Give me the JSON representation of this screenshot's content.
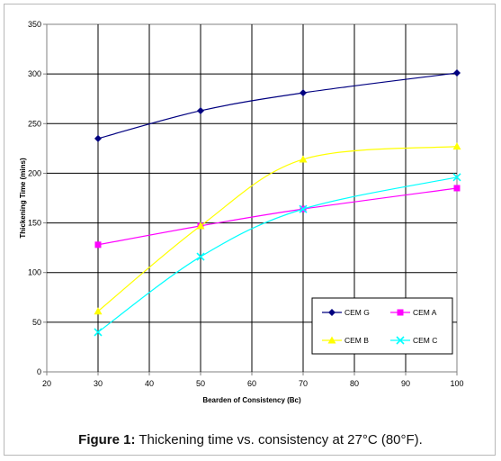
{
  "caption": {
    "label": "Figure 1:",
    "text": " Thickening time vs. consistency at 27°C (80°F)."
  },
  "chart_data": {
    "type": "line",
    "title": "",
    "xlabel": "Bearden of Consistency (Bc)",
    "ylabel": "Thickening Time (mins)",
    "xlim": [
      20,
      100
    ],
    "ylim": [
      0,
      350
    ],
    "xticks": [
      20,
      30,
      40,
      50,
      60,
      70,
      80,
      90,
      100
    ],
    "yticks": [
      0,
      50,
      100,
      150,
      200,
      250,
      300,
      350
    ],
    "grid": true,
    "legend_position": "bottom-right",
    "series": [
      {
        "name": "CEM G",
        "color": "#000080",
        "marker": "diamond",
        "x": [
          30,
          50,
          70,
          100
        ],
        "values": [
          235,
          263,
          281,
          301
        ]
      },
      {
        "name": "CEM A",
        "color": "#ff00ff",
        "marker": "square",
        "x": [
          30,
          50,
          70,
          100
        ],
        "values": [
          128,
          147,
          164,
          185
        ]
      },
      {
        "name": "CEM B",
        "color": "#ffff00",
        "marker": "triangle",
        "x": [
          30,
          50,
          70,
          100
        ],
        "values": [
          61,
          147,
          214,
          227
        ]
      },
      {
        "name": "CEM C",
        "color": "#00ffff",
        "marker": "x",
        "x": [
          30,
          50,
          70,
          100
        ],
        "values": [
          40,
          116,
          164,
          196
        ]
      }
    ]
  }
}
